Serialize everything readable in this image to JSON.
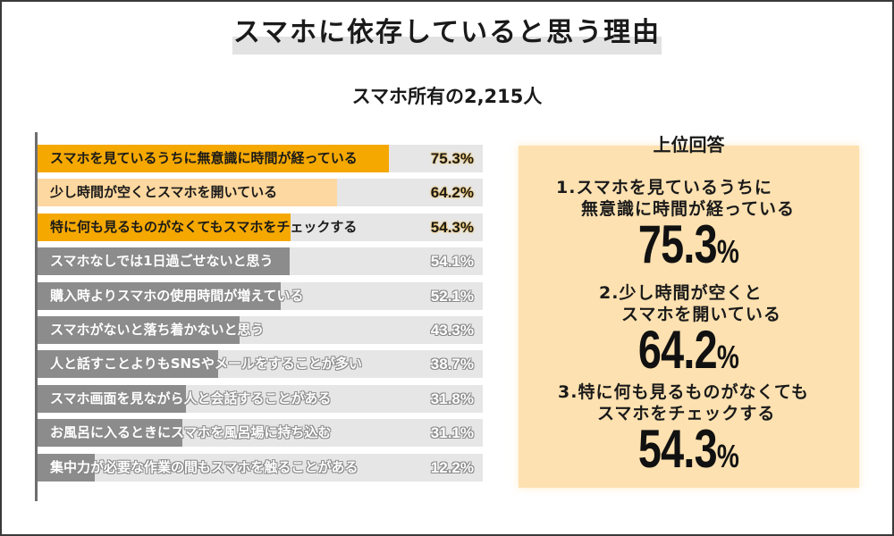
{
  "header": {
    "title": "スマホに依存していると思う理由",
    "subtitle": "スマホ所有の2,215人"
  },
  "colors": {
    "top_fill_dark": "#f5a800",
    "top_fill_light": "#fdd8a0",
    "gray_fill": "#8c8c8c",
    "track": "#e6e6e6",
    "highlight_box": "#fde1b0",
    "title_highlight": "#e2e2e2"
  },
  "bars": [
    {
      "label": "スマホを見ているうちに無意識に時間が経っている",
      "value": 75.3,
      "value_label": "75.3%",
      "style": "top",
      "fill": "#f5a800"
    },
    {
      "label": "少し時間が空くとスマホを開いている",
      "value": 64.2,
      "value_label": "64.2%",
      "style": "top",
      "fill": "#fdd8a0"
    },
    {
      "label": "特に何も見るものがなくてもスマホをチェックする",
      "value": 54.3,
      "value_label": "54.3%",
      "style": "top",
      "fill": "#f5a800"
    },
    {
      "label": "スマホなしでは1日過ごせないと思う",
      "value": 54.1,
      "value_label": "54.1%",
      "style": "gray",
      "fill": "#8c8c8c"
    },
    {
      "label": "購入時よりスマホの使用時間が増えている",
      "value": 52.1,
      "value_label": "52.1%",
      "style": "gray",
      "fill": "#8c8c8c"
    },
    {
      "label": "スマホがないと落ち着かないと思う",
      "value": 43.3,
      "value_label": "43.3%",
      "style": "gray",
      "fill": "#8c8c8c"
    },
    {
      "label": "人と話すことよりもSNSやメールをすることが多い",
      "value": 38.7,
      "value_label": "38.7%",
      "style": "gray",
      "fill": "#8c8c8c"
    },
    {
      "label": "スマホ画面を見ながら人と会話することがある",
      "value": 31.8,
      "value_label": "31.8%",
      "style": "gray",
      "fill": "#8c8c8c"
    },
    {
      "label": "お風呂に入るときにスマホを風呂場に持ち込む",
      "value": 31.1,
      "value_label": "31.1%",
      "style": "gray",
      "fill": "#8c8c8c"
    },
    {
      "label": "集中力が必要な作業の間もスマホを触ることがある",
      "value": 12.2,
      "value_label": "12.2%",
      "style": "gray",
      "fill": "#8c8c8c"
    }
  ],
  "top_answers": {
    "heading": "上位回答",
    "items": [
      {
        "line1": "1.スマホを見ているうちに",
        "line2": "無意識に時間が経っている",
        "num": "75.3",
        "pct": "%"
      },
      {
        "line1": "2.少し時間が空くと",
        "line2": "スマホを開いている",
        "num": "64.2",
        "pct": "%"
      },
      {
        "line1": "3.特に何も見るものがなくても",
        "line2": "スマホをチェックする",
        "num": "54.3",
        "pct": "%"
      }
    ]
  },
  "chart_data": {
    "type": "bar",
    "orientation": "horizontal",
    "title": "スマホに依存していると思う理由",
    "subtitle": "スマホ所有の2,215人",
    "xlabel": "",
    "ylabel": "",
    "unit": "%",
    "categories": [
      "スマホを見ているうちに無意識に時間が経っている",
      "少し時間が空くとスマホを開いている",
      "特に何も見るものがなくてもスマホをチェックする",
      "スマホなしでは1日過ごせないと思う",
      "購入時よりスマホの使用時間が増えている",
      "スマホがないと落ち着かないと思う",
      "人と話すことよりもSNSやメールをすることが多い",
      "スマホ画面を見ながら人と会話することがある",
      "お風呂に入るときにスマホを風呂場に持ち込む",
      "集中力が必要な作業の間もスマホを触ることがある"
    ],
    "values": [
      75.3,
      64.2,
      54.3,
      54.1,
      52.1,
      43.3,
      38.7,
      31.8,
      31.1,
      12.2
    ],
    "xlim": [
      0,
      100
    ],
    "grid": false,
    "legend": null,
    "annotations": [
      "上位回答",
      "1.スマホを見ているうちに無意識に時間が経っている 75.3%",
      "2.少し時間が空くとスマホを開いている 64.2%",
      "3.特に何も見るものがなくてもスマホをチェックする 54.3%"
    ]
  }
}
